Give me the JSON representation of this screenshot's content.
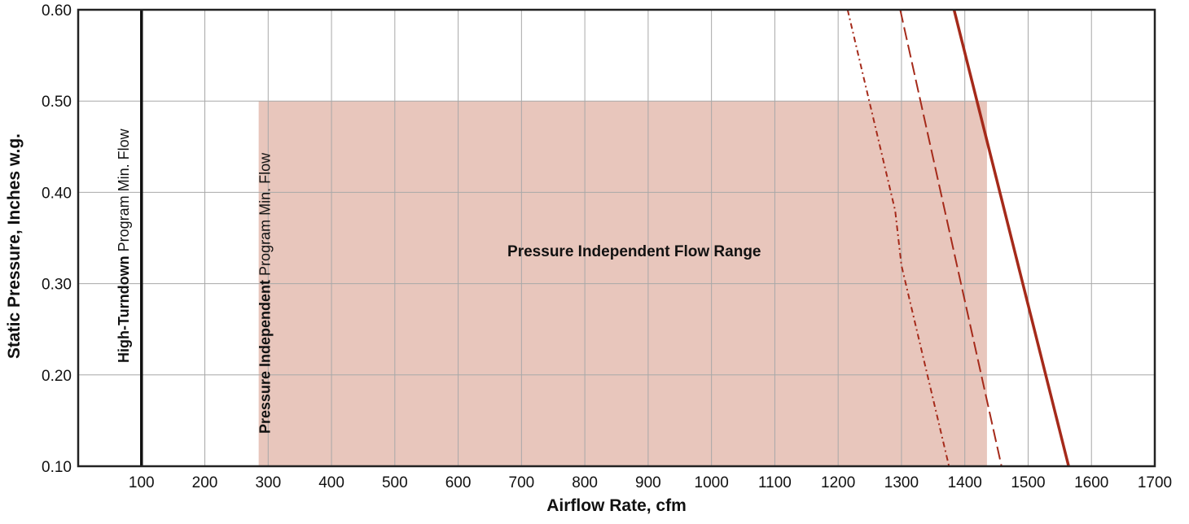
{
  "chart_data": {
    "type": "line",
    "title": "",
    "xlabel": "Airflow Rate, cfm",
    "ylabel": "Static Pressure, Inches w.g.",
    "xlim": [
      0,
      1700
    ],
    "ylim": [
      0.1,
      0.6
    ],
    "x_ticks": [
      "100",
      "200",
      "300",
      "400",
      "500",
      "600",
      "700",
      "800",
      "900",
      "1000",
      "1100",
      "1200",
      "1300",
      "1400",
      "1500",
      "1600",
      "1700"
    ],
    "y_ticks": [
      "0.10",
      "0.20",
      "0.30",
      "0.40",
      "0.50",
      "0.60"
    ],
    "x_gridlines": [
      100,
      200,
      300,
      400,
      500,
      600,
      700,
      800,
      900,
      1000,
      1100,
      1200,
      1300,
      1400,
      1500,
      1600
    ],
    "grid": true,
    "shaded_region": {
      "label": "Pressure Independent Flow Range",
      "x": [
        285,
        1435
      ],
      "y": [
        0.1,
        0.5
      ],
      "color": "#e8c6bc"
    },
    "vertical_lines": [
      {
        "x": 100,
        "label_bold": "High-Turndown",
        "label_rest": " Program Min. Flow",
        "color": "#111111"
      }
    ],
    "region_side_label": {
      "x": 285,
      "label_bold": "Pressure Independent",
      "label_rest": " Program Min. Flow"
    },
    "series": [
      {
        "style": "solid",
        "color": "#a52a1a",
        "points": [
          [
            1383,
            0.6
          ],
          [
            1564,
            0.1
          ]
        ]
      },
      {
        "style": "dashed",
        "color": "#a52a1a",
        "points": [
          [
            1298,
            0.6
          ],
          [
            1458,
            0.1
          ]
        ]
      },
      {
        "style": "dashdot",
        "color": "#a52a1a",
        "points": [
          [
            1215,
            0.6
          ],
          [
            1290,
            0.38
          ],
          [
            1300,
            0.32
          ],
          [
            1375,
            0.1
          ]
        ]
      }
    ]
  }
}
